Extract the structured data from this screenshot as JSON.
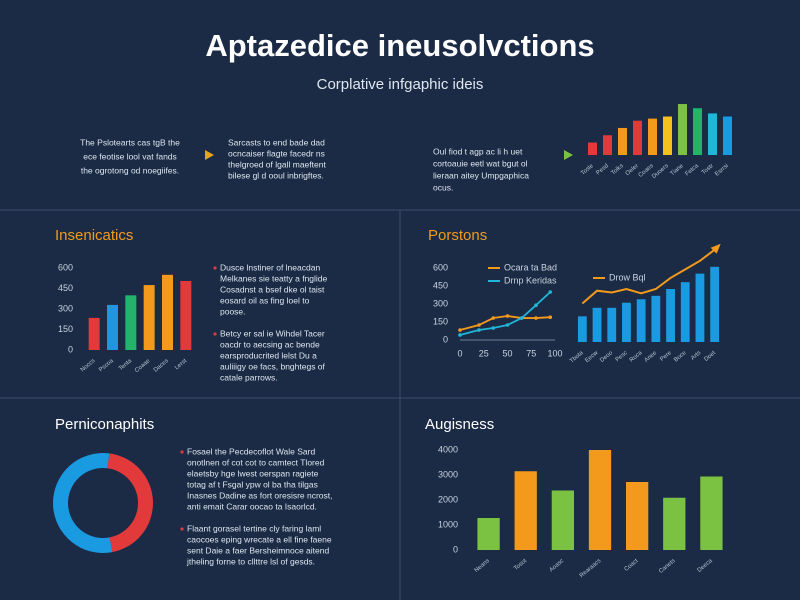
{
  "header": {
    "title": "Aptazedice ineusolvctions",
    "subtitle": "Corplative infgaphic ideis"
  },
  "intro": [
    {
      "lines": [
        "The Pslotearts cas tgB the",
        "ece feotise lool vat fands",
        "the ogrotong od noegiifes."
      ]
    },
    {
      "lines": [
        "Sarcasts to end bade dad",
        "ocncaiser flagte facedr ns",
        "thelgroed of lgall maeftent",
        "bilese gl d ooul inbrigftes."
      ]
    },
    {
      "lines": [
        "Oul fiod t agp ac li h uet",
        "cortoauie eetl wat bgut ol",
        "lieraan aitey Umpgaphica",
        "ocus."
      ]
    }
  ],
  "chart_data": [
    {
      "type": "bar",
      "title": "Insenicatics",
      "categories": [
        "Noccs",
        "Pscoa",
        "Tenta",
        "Coaae",
        "Daces",
        "Lerst"
      ],
      "values": [
        235,
        330,
        400,
        475,
        550,
        505
      ],
      "colors": [
        "#e2393b",
        "#2196e0",
        "#23b36b",
        "#f39a1c",
        "#f39a1c",
        "#e2393b"
      ],
      "ylim": [
        0,
        600
      ],
      "yticks": [
        0,
        150,
        300,
        450,
        600
      ],
      "notes": [
        [
          "Dusce lnstiner of lneacdan",
          "Melkanes sie teatty a fnglide",
          "Cosadnst a bsef dke ol taist",
          "eosard oil as fing loel to",
          "poose."
        ],
        [
          "Betcy er sal ie Wihdel Tacer",
          "oacdr to aecsing ac bende",
          "earsproducrited lelst Du a",
          "auliiigy oe facs, bnghtegs of",
          "catale parrows."
        ]
      ]
    },
    {
      "type": "line",
      "title": "Porstons",
      "x": [
        0,
        20,
        35,
        50,
        65,
        80,
        95
      ],
      "series": [
        {
          "name": "Ocara ta Bad",
          "color": "#f39a1c",
          "values": [
            83,
            125,
            183,
            200,
            183,
            183,
            190
          ]
        },
        {
          "name": "Drnp Keridas",
          "color": "#1fb6d8",
          "values": [
            42,
            83,
            100,
            125,
            183,
            290,
            400
          ]
        }
      ],
      "xlim": [
        0,
        100
      ],
      "xticks": [
        0,
        25,
        50,
        75,
        100
      ],
      "ylim": [
        0,
        600
      ],
      "yticks": [
        0,
        150,
        300,
        450,
        600
      ]
    },
    {
      "type": "combo",
      "categories": [
        "Tbota",
        "Eecw",
        "Deoo",
        "Pesc",
        "Roca",
        "Anee",
        "Pere",
        "Boce",
        "Arts",
        "Doet"
      ],
      "values": [
        30,
        40,
        40,
        46,
        50,
        54,
        62,
        70,
        80,
        88
      ],
      "color": "#1a9ae0",
      "line": {
        "name": "Drow Bql",
        "color": "#f39a1c",
        "values": [
          45,
          60,
          58,
          62,
          57,
          62,
          75,
          85,
          95,
          108
        ]
      },
      "ylim": [
        0,
        110
      ]
    },
    {
      "type": "pie",
      "title": "Perniconaphits",
      "values": [
        45,
        55
      ],
      "colors": [
        "#e2393b",
        "#1a9ae0"
      ],
      "notes": [
        [
          "Fosael the Pecdecoflot Wale Sard",
          "onotlnen of cot cot to camtect Tlored",
          "elaetsby hge lwest oerspan ragiete",
          "totag af t Fsgal ypw ol ba tha tilgas",
          "Inasnes Dadine as fort oresisre ncrost,",
          "anti emait Carar oocao ta Isaorlcd."
        ],
        [
          "Flaant gorasel tertine cly faring laml",
          "caocoes eping wrecate a ell fine faene",
          "sent Daie a faer Bersheimnoce aitend",
          "jtheling forne to cllttre lsl of gesds."
        ]
      ]
    },
    {
      "type": "bar",
      "title": "Augisness",
      "categories": [
        "Neans",
        "Tosot",
        "Aoasc",
        "Rearaacs",
        "Coact",
        "Canets",
        "Deeca"
      ],
      "values": [
        1280,
        3150,
        2380,
        4000,
        2720,
        2090,
        2940
      ],
      "colors": [
        "#7cc242",
        "#f39a1c",
        "#7cc242",
        "#f39a1c",
        "#f39a1c",
        "#7cc242",
        "#7cc242"
      ],
      "ylim": [
        0,
        4200
      ],
      "yticks": [
        0,
        1000,
        2000,
        3000,
        4000
      ]
    },
    {
      "type": "bar",
      "categories": [
        "Tosle",
        "Pesd",
        "Tolks",
        "Oeler",
        "Coaes",
        "Duoers",
        "Tiane",
        "Fetca",
        "Tostr",
        "Esrrsi"
      ],
      "values": [
        12,
        19,
        26,
        33,
        35,
        37,
        49,
        45,
        40,
        37
      ],
      "colors": [
        "#e2393b",
        "#e2393b",
        "#f39a1c",
        "#e2393b",
        "#f39a1c",
        "#f3c01c",
        "#7cc242",
        "#23b36b",
        "#1fb6d8",
        "#1a9ae0"
      ],
      "ylim": [
        0,
        50
      ]
    }
  ]
}
